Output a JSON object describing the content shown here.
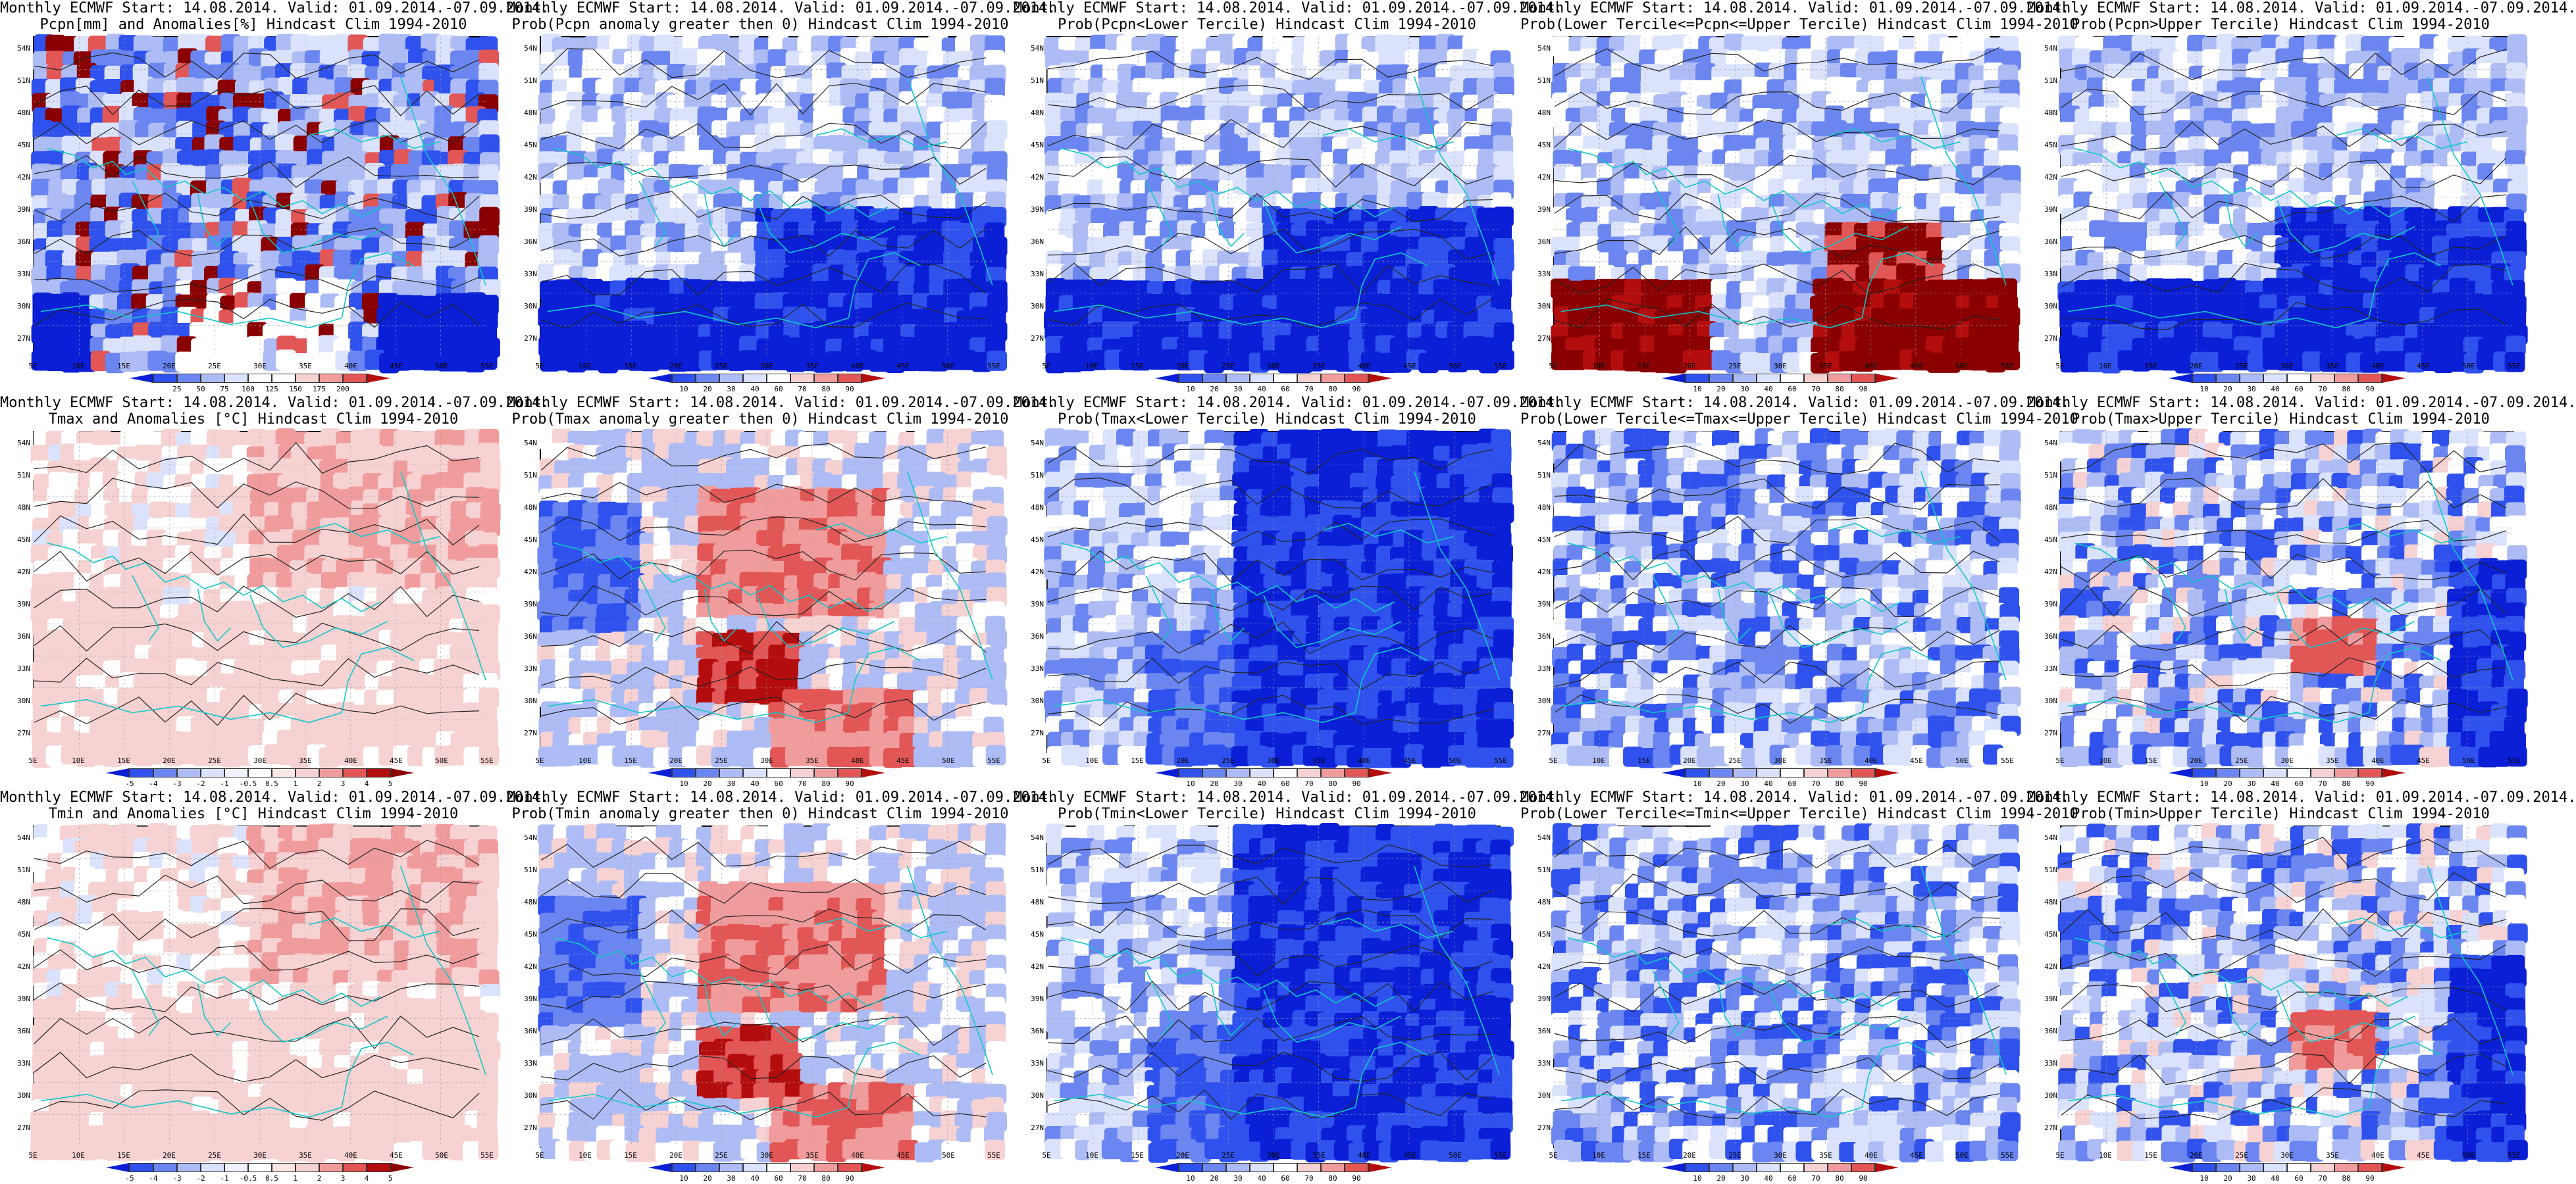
{
  "figure": {
    "background": "#ffffff",
    "colors": {
      "deep_blue": "#0a1fd6",
      "blue": "#2f52ee",
      "mid_blue": "#6b86f0",
      "light_blue": "#aebcf6",
      "pale_blue": "#dbe2fb",
      "white": "#ffffff",
      "pale_red": "#f7d2d2",
      "light_red": "#f19c9c",
      "red": "#e25656",
      "deep_red": "#b40d0d",
      "dark_red": "#8a0000",
      "coast": "#10c8c8",
      "contour": "#222222"
    }
  },
  "axes": {
    "lat_labels": [
      "54N",
      "51N",
      "48N",
      "45N",
      "42N",
      "39N",
      "36N",
      "33N",
      "30N",
      "27N"
    ],
    "lon_labels": [
      "5E",
      "10E",
      "15E",
      "20E",
      "25E",
      "30E",
      "35E",
      "40E",
      "45E",
      "50E",
      "55E"
    ]
  },
  "colorbars": {
    "precip_anomaly": {
      "labels": [
        "25",
        "50",
        "75",
        "100",
        "125",
        "150",
        "175",
        "200"
      ],
      "colors": [
        "#0a1fd6",
        "#2f52ee",
        "#6b86f0",
        "#aebcf6",
        "#dbe2fb",
        "#ffffff",
        "#ffffff",
        "#f7d2d2",
        "#f19c9c",
        "#e25656",
        "#b40d0d"
      ]
    },
    "probability": {
      "labels": [
        "10",
        "20",
        "30",
        "40",
        "60",
        "70",
        "80",
        "90"
      ],
      "colors": [
        "#0a1fd6",
        "#2f52ee",
        "#6b86f0",
        "#aebcf6",
        "#dbe2fb",
        "#ffffff",
        "#f7d2d2",
        "#f19c9c",
        "#e25656",
        "#b40d0d"
      ]
    },
    "temp_anomaly": {
      "labels": [
        "-5",
        "-4",
        "-3",
        "-2",
        "-1",
        "-0.5",
        "0.5",
        "1",
        "2",
        "3",
        "4",
        "5"
      ],
      "colors": [
        "#0a1fd6",
        "#2f52ee",
        "#6b86f0",
        "#aebcf6",
        "#dbe2fb",
        "#f0f3fd",
        "#ffffff",
        "#fbe6e6",
        "#f7d2d2",
        "#f19c9c",
        "#e25656",
        "#b40d0d",
        "#8a0000"
      ]
    }
  },
  "panels": [
    {
      "id": "pcpn-anom",
      "line1": "Monthly ECMWF Start: 14.08.2014. Valid: 01.09.2014.-07.09.2014.",
      "line2": "Pcpn[mm] and Anomalies[%] Hindcast Clim 1994-2010",
      "colorbar": "precip_anomaly",
      "pattern": "precip"
    },
    {
      "id": "pcpn-prob-gt0",
      "line1": "Monthly ECMWF Start: 14.08.2014. Valid: 01.09.2014.-07.09.2014.",
      "line2": "Prob(Pcpn anomaly greater then 0) Hindcast Clim 1994-2010",
      "colorbar": "probability",
      "pattern": "blue_south"
    },
    {
      "id": "pcpn-prob-lower",
      "line1": "Monthly ECMWF Start: 14.08.2014. Valid: 01.09.2014.-07.09.2014.",
      "line2": "Prob(Pcpn<Lower Tercile) Hindcast Clim 1994-2010",
      "colorbar": "probability",
      "pattern": "blue_south"
    },
    {
      "id": "pcpn-prob-middle",
      "line1": "Monthly ECMWF Start: 14.08.2014. Valid: 01.09.2014.-07.09.2014.",
      "line2": "Prob(Lower Tercile<=Pcpn<=Upper Tercile) Hindcast Clim 1994-2010",
      "colorbar": "probability",
      "pattern": "red_south"
    },
    {
      "id": "pcpn-prob-upper",
      "line1": "Monthly ECMWF Start: 14.08.2014. Valid: 01.09.2014.-07.09.2014.",
      "line2": "Prob(Pcpn>Upper Tercile) Hindcast Clim 1994-2010",
      "colorbar": "probability",
      "pattern": "blue_south"
    },
    {
      "id": "tmax-anom",
      "line1": "Monthly ECMWF Start: 14.08.2014. Valid: 01.09.2014.-07.09.2014.",
      "line2": "Tmax and Anomalies [°C] Hindcast Clim 1994-2010",
      "colorbar": "temp_anomaly",
      "pattern": "light_red"
    },
    {
      "id": "tmax-prob-gt0",
      "line1": "Monthly ECMWF Start: 14.08.2014. Valid: 01.09.2014.-07.09.2014.",
      "line2": "Prob(Tmax anomaly greater then 0) Hindcast Clim 1994-2010",
      "colorbar": "probability",
      "pattern": "red_patches"
    },
    {
      "id": "tmax-prob-lower",
      "line1": "Monthly ECMWF Start: 14.08.2014. Valid: 01.09.2014.-07.09.2014.",
      "line2": "Prob(Tmax<Lower Tercile) Hindcast Clim 1994-2010",
      "colorbar": "probability",
      "pattern": "blue_east"
    },
    {
      "id": "tmax-prob-middle",
      "line1": "Monthly ECMWF Start: 14.08.2014. Valid: 01.09.2014.-07.09.2014.",
      "line2": "Prob(Lower Tercile<=Tmax<=Upper Tercile) Hindcast Clim 1994-2010",
      "colorbar": "probability",
      "pattern": "blue_mixed"
    },
    {
      "id": "tmax-prob-upper",
      "line1": "Monthly ECMWF Start: 14.08.2014. Valid: 01.09.2014.-07.09.2014.",
      "line2": "Prob(Tmax>Upper Tercile) Hindcast Clim 1994-2010",
      "colorbar": "probability",
      "pattern": "blue_mixed_red"
    },
    {
      "id": "tmin-anom",
      "line1": "Monthly ECMWF Start: 14.08.2014. Valid: 01.09.2014.-07.09.2014.",
      "line2": "Tmin and Anomalies [°C] Hindcast Clim 1994-2010",
      "colorbar": "temp_anomaly",
      "pattern": "light_red"
    },
    {
      "id": "tmin-prob-gt0",
      "line1": "Monthly ECMWF Start: 14.08.2014. Valid: 01.09.2014.-07.09.2014.",
      "line2": "Prob(Tmin anomaly greater then 0) Hindcast Clim 1994-2010",
      "colorbar": "probability",
      "pattern": "red_patches"
    },
    {
      "id": "tmin-prob-lower",
      "line1": "Monthly ECMWF Start: 14.08.2014. Valid: 01.09.2014.-07.09.2014.",
      "line2": "Prob(Tmin<Lower Tercile) Hindcast Clim 1994-2010",
      "colorbar": "probability",
      "pattern": "blue_east"
    },
    {
      "id": "tmin-prob-middle",
      "line1": "Monthly ECMWF Start: 14.08.2014. Valid: 01.09.2014.-07.09.2014.",
      "line2": "Prob(Lower Tercile<=Tmin<=Upper Tercile) Hindcast Clim 1994-2010",
      "colorbar": "probability",
      "pattern": "blue_mixed"
    },
    {
      "id": "tmin-prob-upper",
      "line1": "Monthly ECMWF Start: 14.08.2014. Valid: 01.09.2014.-07.09.2014.",
      "line2": "Prob(Tmin>Upper Tercile) Hindcast Clim 1994-2010",
      "colorbar": "probability",
      "pattern": "blue_mixed_red"
    }
  ]
}
